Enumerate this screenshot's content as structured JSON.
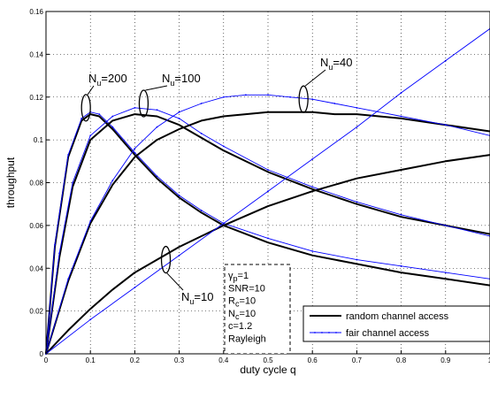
{
  "chart_data": {
    "type": "line",
    "xlabel": "duty cycle q",
    "ylabel": "throughput",
    "xlim": [
      0,
      1
    ],
    "ylim": [
      0,
      0.16
    ],
    "xticks": [
      "0",
      "0.1",
      "0.2",
      "0.3",
      "0.4",
      "0.5",
      "0.6",
      "0.7",
      "0.8",
      "0.9",
      "1"
    ],
    "yticks": [
      "0",
      "0.02",
      "0.04",
      "0.06",
      "0.08",
      "0.1",
      "0.12",
      "0.14",
      "0.16"
    ],
    "grid": "on",
    "legend_position": "bottom-right",
    "legend": [
      "random channel access",
      "fair channel access"
    ],
    "line_colors": {
      "random": "#000000",
      "fair": "#0000ff"
    },
    "series": [
      {
        "group": "Nu=200",
        "style": "random",
        "x": [
          0,
          0.02,
          0.05,
          0.08,
          0.1,
          0.12,
          0.15,
          0.2,
          0.25,
          0.3,
          0.35,
          0.4,
          0.5,
          0.6,
          0.7,
          0.8,
          0.9,
          1.0
        ],
        "y": [
          0,
          0.05,
          0.092,
          0.109,
          0.112,
          0.111,
          0.105,
          0.093,
          0.082,
          0.073,
          0.066,
          0.06,
          0.052,
          0.046,
          0.042,
          0.038,
          0.035,
          0.032
        ]
      },
      {
        "group": "Nu=200",
        "style": "fair",
        "x": [
          0,
          0.02,
          0.05,
          0.08,
          0.1,
          0.12,
          0.15,
          0.2,
          0.25,
          0.3,
          0.35,
          0.4,
          0.5,
          0.6,
          0.7,
          0.8,
          0.9,
          1.0
        ],
        "y": [
          0,
          0.051,
          0.093,
          0.11,
          0.113,
          0.112,
          0.106,
          0.094,
          0.083,
          0.074,
          0.067,
          0.061,
          0.054,
          0.048,
          0.044,
          0.041,
          0.038,
          0.035
        ]
      },
      {
        "group": "Nu=100",
        "style": "random",
        "x": [
          0,
          0.03,
          0.06,
          0.1,
          0.15,
          0.2,
          0.25,
          0.3,
          0.35,
          0.4,
          0.5,
          0.6,
          0.7,
          0.8,
          0.9,
          1.0
        ],
        "y": [
          0,
          0.045,
          0.078,
          0.1,
          0.109,
          0.112,
          0.111,
          0.107,
          0.101,
          0.095,
          0.085,
          0.077,
          0.07,
          0.064,
          0.06,
          0.056
        ]
      },
      {
        "group": "Nu=100",
        "style": "fair",
        "x": [
          0,
          0.03,
          0.06,
          0.1,
          0.15,
          0.2,
          0.25,
          0.3,
          0.35,
          0.4,
          0.5,
          0.6,
          0.7,
          0.8,
          0.9,
          1.0
        ],
        "y": [
          0,
          0.047,
          0.08,
          0.102,
          0.111,
          0.115,
          0.114,
          0.11,
          0.103,
          0.097,
          0.086,
          0.078,
          0.071,
          0.065,
          0.06,
          0.055
        ]
      },
      {
        "group": "Nu=40",
        "style": "random",
        "x": [
          0,
          0.05,
          0.1,
          0.15,
          0.2,
          0.25,
          0.3,
          0.35,
          0.4,
          0.45,
          0.5,
          0.55,
          0.6,
          0.65,
          0.7,
          0.8,
          0.9,
          1.0
        ],
        "y": [
          0,
          0.034,
          0.061,
          0.079,
          0.092,
          0.1,
          0.105,
          0.109,
          0.111,
          0.112,
          0.113,
          0.113,
          0.113,
          0.112,
          0.112,
          0.11,
          0.107,
          0.104
        ]
      },
      {
        "group": "Nu=40",
        "style": "fair",
        "x": [
          0,
          0.05,
          0.1,
          0.15,
          0.2,
          0.25,
          0.3,
          0.35,
          0.4,
          0.45,
          0.5,
          0.55,
          0.6,
          0.65,
          0.7,
          0.8,
          0.9,
          1.0
        ],
        "y": [
          0,
          0.035,
          0.062,
          0.081,
          0.096,
          0.106,
          0.113,
          0.117,
          0.12,
          0.121,
          0.121,
          0.12,
          0.119,
          0.117,
          0.115,
          0.111,
          0.107,
          0.102
        ]
      },
      {
        "group": "Nu=10",
        "style": "random",
        "x": [
          0,
          0.05,
          0.1,
          0.15,
          0.2,
          0.25,
          0.3,
          0.4,
          0.5,
          0.6,
          0.7,
          0.8,
          0.9,
          1.0
        ],
        "y": [
          0,
          0.011,
          0.021,
          0.03,
          0.038,
          0.044,
          0.05,
          0.06,
          0.069,
          0.076,
          0.082,
          0.086,
          0.09,
          0.093
        ]
      },
      {
        "group": "Nu=10",
        "style": "fair",
        "x": [
          0,
          0.1,
          0.2,
          0.3,
          0.4,
          0.5,
          0.6,
          0.7,
          0.8,
          0.9,
          1.0
        ],
        "y": [
          0,
          0.016,
          0.031,
          0.046,
          0.061,
          0.076,
          0.091,
          0.106,
          0.122,
          0.137,
          0.152
        ]
      }
    ],
    "annotations": [
      {
        "base": "N",
        "sub": "u",
        "rest": "=200",
        "x": 0.09,
        "y": 0.115
      },
      {
        "base": "N",
        "sub": "u",
        "rest": "=100",
        "x": 0.22,
        "y": 0.117
      },
      {
        "base": "N",
        "sub": "u",
        "rest": "=40",
        "x": 0.58,
        "y": 0.119
      },
      {
        "base": "N",
        "sub": "u",
        "rest": "=10",
        "x": 0.27,
        "y": 0.044
      }
    ],
    "param_box": [
      {
        "base": "γ",
        "sub": "p",
        "rest": "=1"
      },
      {
        "base": "SNR=10",
        "sub": "",
        "rest": ""
      },
      {
        "base": "R",
        "sub": "c",
        "rest": "=10"
      },
      {
        "base": "N",
        "sub": "c",
        "rest": "=10"
      },
      {
        "base": "c=1.2",
        "sub": "",
        "rest": ""
      },
      {
        "base": "Rayleigh",
        "sub": "",
        "rest": ""
      }
    ]
  }
}
